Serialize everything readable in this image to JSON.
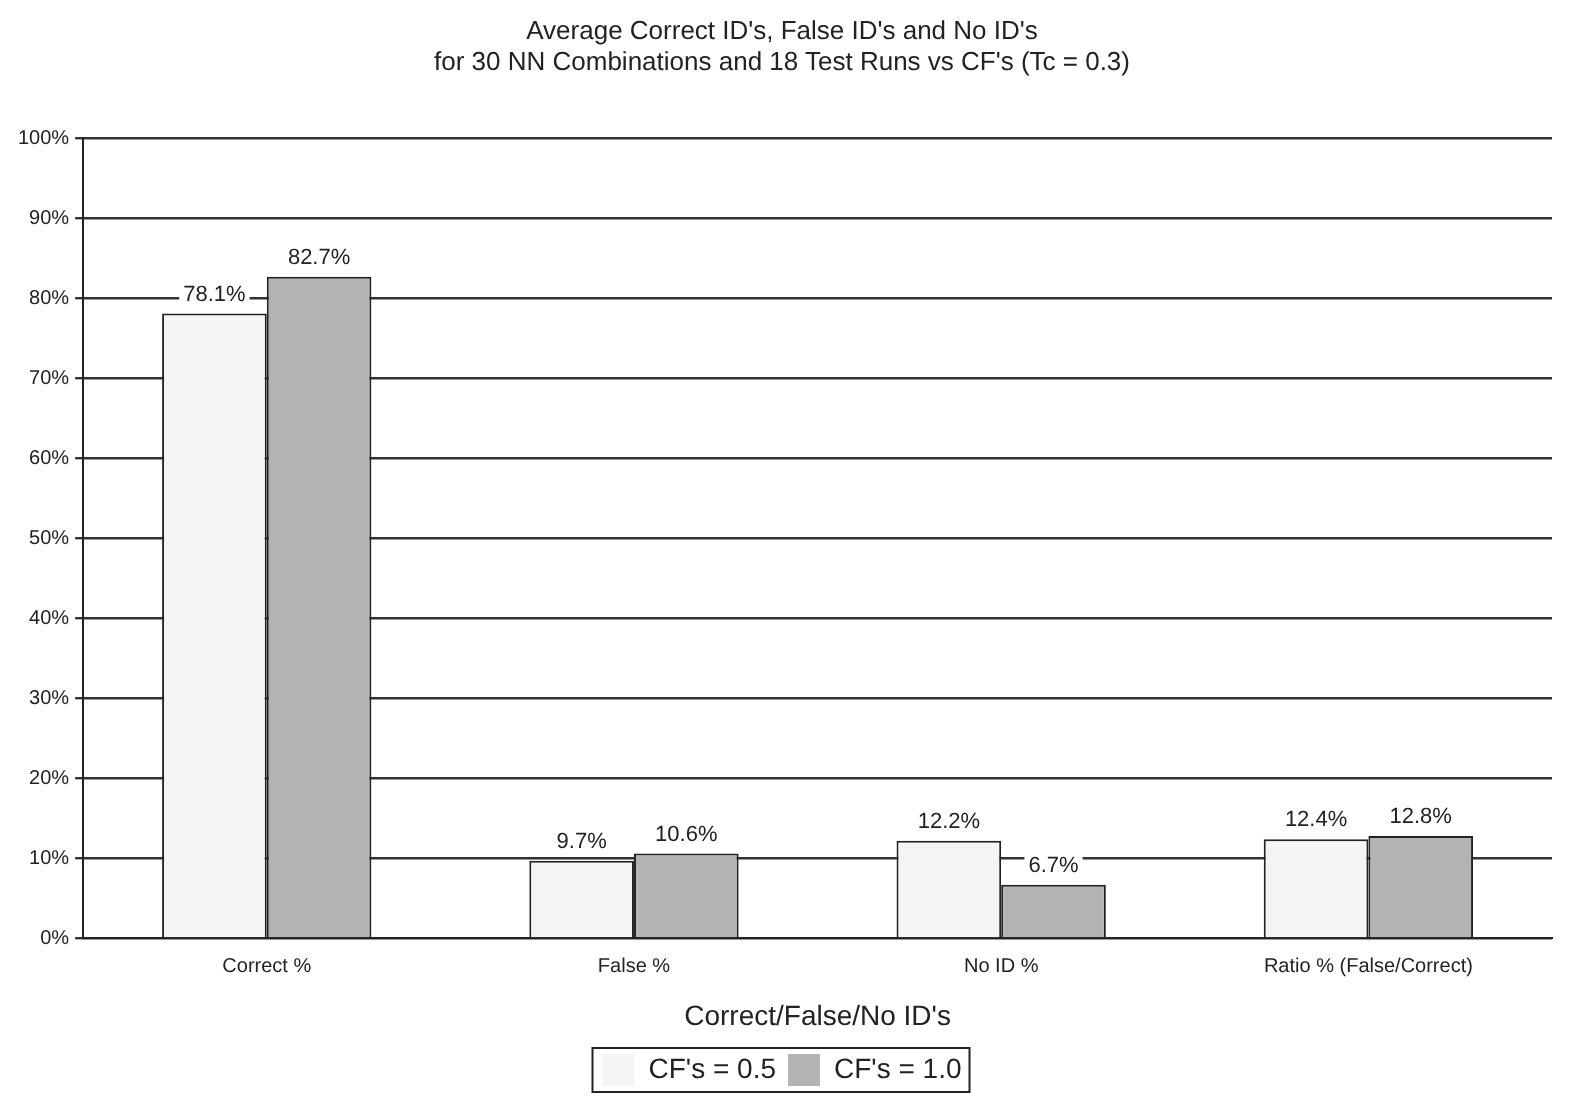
{
  "chart_data": {
    "type": "bar",
    "title": "Average Correct ID's, False ID's and No ID's\nfor 30 NN Combinations and 18 Test Runs vs CF's (Tc = 0.3)",
    "xlabel": "Correct/False/No ID's",
    "categories": [
      "Correct %",
      "False %",
      "No ID %",
      "Ratio % (False/Correct)"
    ],
    "series": [
      {
        "name": "CF's = 0.5",
        "color": "#f4f4f4",
        "values": [
          78.1,
          9.7,
          12.2,
          12.4
        ],
        "value_labels": [
          "78.1%",
          "9.7%",
          "12.2%",
          "12.4%"
        ]
      },
      {
        "name": "CF's = 1.0",
        "color": "#b3b3b3",
        "values": [
          82.7,
          10.6,
          6.7,
          12.8
        ],
        "value_labels": [
          "82.7%",
          "10.6%",
          "6.7%",
          "12.8%"
        ]
      }
    ],
    "ylim": [
      0,
      100
    ],
    "yticks": [
      {
        "value": 0,
        "label": "0%"
      },
      {
        "value": 10,
        "label": "10%"
      },
      {
        "value": 20,
        "label": "20%"
      },
      {
        "value": 30,
        "label": "30%"
      },
      {
        "value": 40,
        "label": "40%"
      },
      {
        "value": 50,
        "label": "50%"
      },
      {
        "value": 60,
        "label": "60%"
      },
      {
        "value": 70,
        "label": "70%"
      },
      {
        "value": 80,
        "label": "80%"
      },
      {
        "value": 90,
        "label": "90%"
      },
      {
        "value": 100,
        "label": "100%"
      }
    ],
    "grid": "y",
    "legend": "bottom"
  }
}
